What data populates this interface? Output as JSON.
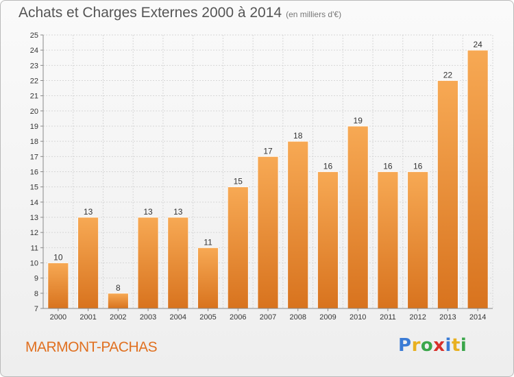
{
  "title": "Achats et Charges Externes 2000 à 2014",
  "subtitle": "(en milliers d'€)",
  "commune": "MARMONT-PACHAS",
  "logo": {
    "text": "Proxiti"
  },
  "colors": {
    "bar_light": "#f7a954",
    "bar_dark": "#d8731e",
    "grid": "#d6d6d6",
    "axis_text": "#333333",
    "commune_text": "#e07020"
  },
  "chart_data": {
    "type": "bar",
    "categories": [
      "2000",
      "2001",
      "2002",
      "2003",
      "2004",
      "2005",
      "2006",
      "2007",
      "2008",
      "2009",
      "2010",
      "2011",
      "2012",
      "2013",
      "2014"
    ],
    "values": [
      10,
      13,
      8,
      13,
      13,
      11,
      15,
      17,
      18,
      16,
      19,
      16,
      16,
      22,
      24
    ],
    "title": "Achats et Charges Externes 2000 à 2014",
    "subtitle": "(en milliers d'€)",
    "xlabel": "",
    "ylabel": "",
    "ylim": [
      7,
      25
    ],
    "yticks": [
      7,
      8,
      9,
      10,
      11,
      12,
      13,
      14,
      15,
      16,
      17,
      18,
      19,
      20,
      21,
      22,
      23,
      24,
      25
    ],
    "grid": true,
    "data_labels": true
  }
}
